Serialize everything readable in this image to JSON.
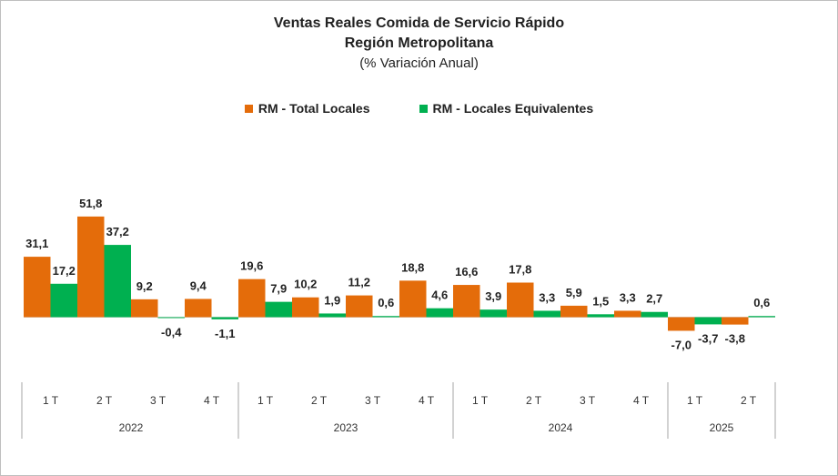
{
  "chart_data": {
    "type": "bar",
    "title": "Ventas Reales Comida de Servicio Rápido",
    "subtitle": "Región Metropolitana",
    "subtitle2": "(% Variación Anual)",
    "categories": [
      "1 T",
      "2 T",
      "3 T",
      "4 T",
      "1 T",
      "2 T",
      "3 T",
      "4 T",
      "1 T",
      "2 T",
      "3 T",
      "4 T",
      "1 T",
      "2 T"
    ],
    "years": [
      {
        "label": "2022",
        "count": 4
      },
      {
        "label": "2023",
        "count": 4
      },
      {
        "label": "2024",
        "count": 4
      },
      {
        "label": "2025",
        "count": 2
      }
    ],
    "series": [
      {
        "name": "RM - Total Locales",
        "color": "#E46C0A",
        "values": [
          31.1,
          51.8,
          9.2,
          9.4,
          19.6,
          10.2,
          11.2,
          18.8,
          16.6,
          17.8,
          5.9,
          3.3,
          -7.0,
          -3.8
        ]
      },
      {
        "name": "RM - Locales Equivalentes",
        "color": "#00B050",
        "values": [
          17.2,
          37.2,
          -0.4,
          -1.1,
          7.9,
          1.9,
          0.6,
          4.6,
          3.9,
          3.3,
          1.5,
          2.7,
          -3.7,
          0.6
        ]
      }
    ],
    "grid": false,
    "legend_position": "top"
  }
}
